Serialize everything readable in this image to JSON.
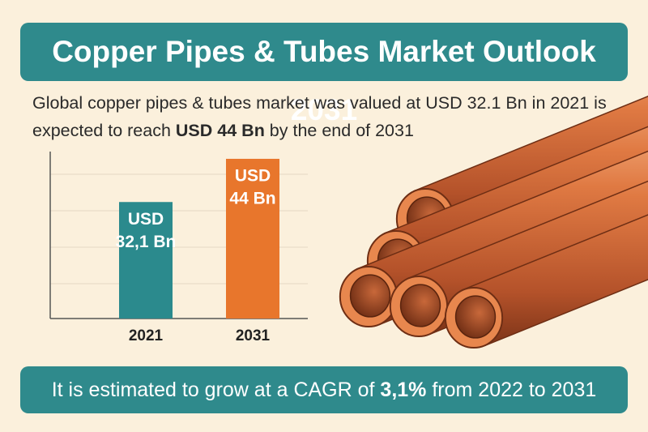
{
  "title": "Copper Pipes & Tubes Market Outlook 2031",
  "description": {
    "text": "Global copper pipes & tubes market was valued at USD 32.1 Bn in 2021 is expected to reach ",
    "highlight": "USD 44 Bn",
    "tail": " by the end of 2031"
  },
  "chart_data": {
    "type": "bar",
    "categories": [
      "2021",
      "2031"
    ],
    "values": [
      32.1,
      44
    ],
    "value_labels": [
      [
        "USD",
        "32,1 Bn"
      ],
      [
        "USD",
        "44 Bn"
      ]
    ],
    "colors": [
      "#2b8a8d",
      "#e8762c"
    ],
    "ylim": [
      0,
      46
    ]
  },
  "footer": {
    "text": "It is estimated to grow at a CAGR of ",
    "highlight": "3,1%",
    "tail": " from 2022 to 2031"
  }
}
